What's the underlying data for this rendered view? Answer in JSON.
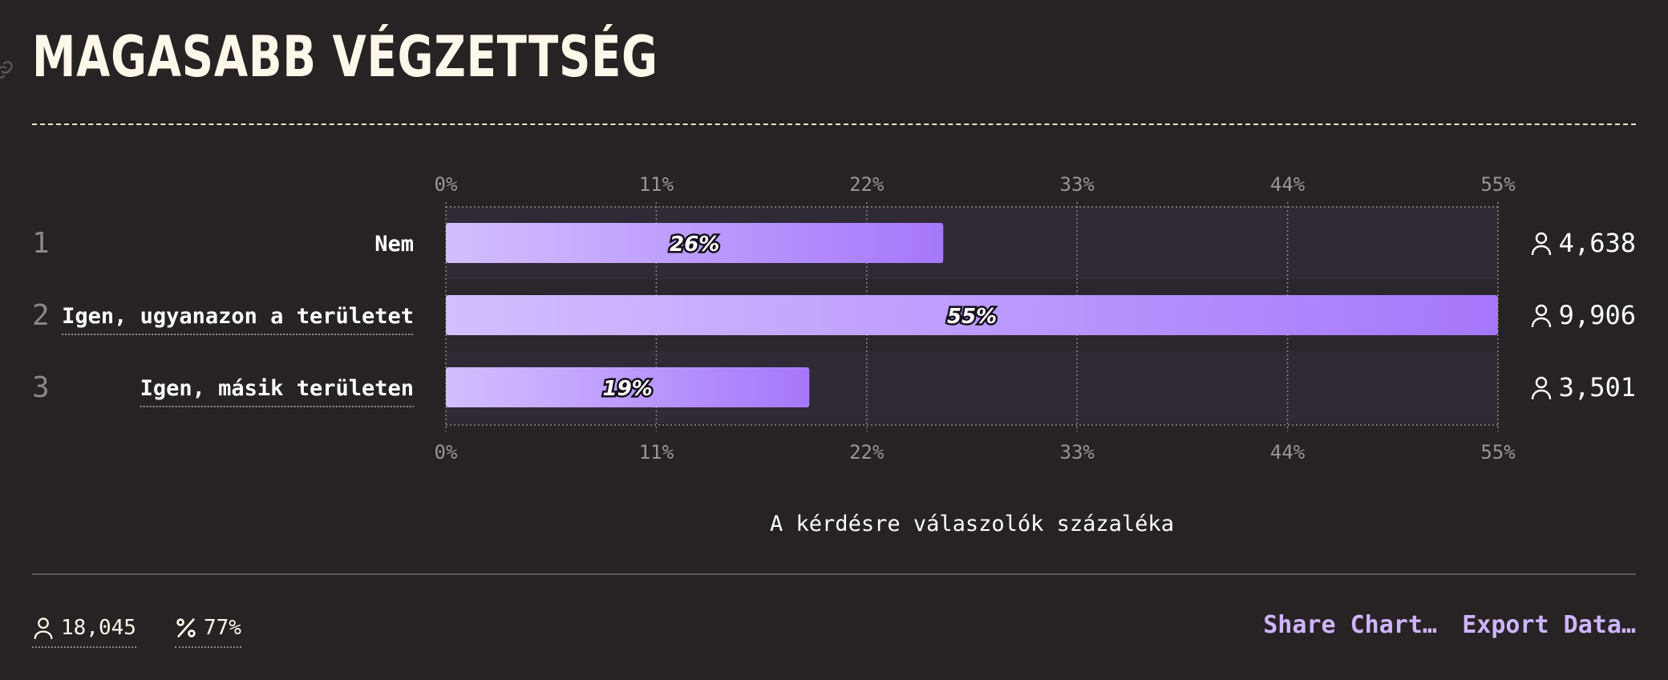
{
  "title": "MAGASABB VÉGZETTSÉG",
  "colors": {
    "background": "#272324",
    "row_band": "#302a36",
    "bar_start": "#d3bfff",
    "bar_end": "#a677fb",
    "action": "#ceb5ff"
  },
  "chart_data": {
    "type": "bar",
    "orientation": "horizontal",
    "xlabel": "A kérdésre válaszolók százaléka",
    "xlim": [
      0,
      55
    ],
    "ticks": [
      "0%",
      "11%",
      "22%",
      "33%",
      "44%",
      "55%"
    ],
    "grid": true,
    "rows": [
      {
        "rank": "1",
        "label": "Nem",
        "value": 26,
        "value_label": "26%",
        "count": "4,638",
        "underlined": false
      },
      {
        "rank": "2",
        "label": "Igen, ugyanazon a területet",
        "value": 55,
        "value_label": "55%",
        "count": "9,906",
        "underlined": true
      },
      {
        "rank": "3",
        "label": "Igen, másik területen",
        "value": 19,
        "value_label": "19%",
        "count": "3,501",
        "underlined": true
      }
    ]
  },
  "footer": {
    "respondents": "18,045",
    "percent": "77%",
    "share_label": "Share Chart…",
    "export_label": "Export Data…",
    "icons": {
      "respondents": "user-icon",
      "percent": "percent-icon"
    }
  }
}
